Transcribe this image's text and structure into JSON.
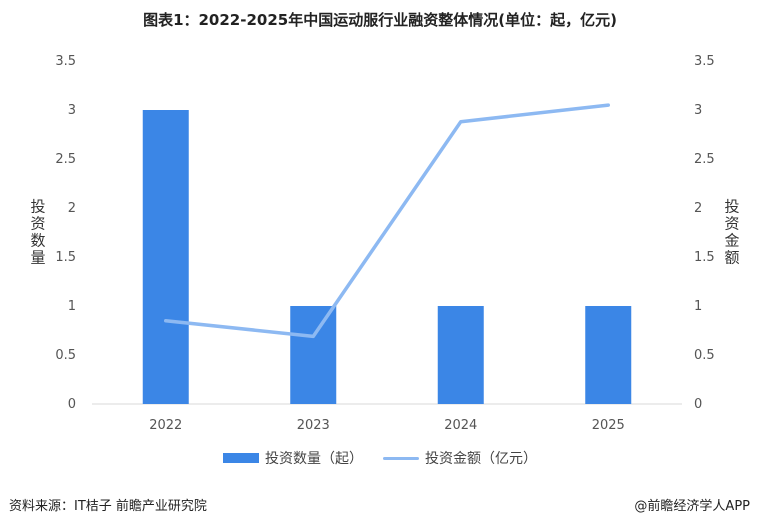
{
  "title": "图表1：2022-2025年中国运动服行业融资整体情况(单位：起，亿元)",
  "source": "资料来源：IT桔子 前瞻产业研究院",
  "copyright": "@前瞻经济学人APP",
  "colors": {
    "bar": "#3b86e6",
    "line": "#8db9f2",
    "grid": "#d9d9d9"
  },
  "chart_data": {
    "type": "bar",
    "categories": [
      "2022",
      "2023",
      "2024",
      "2025"
    ],
    "series": [
      {
        "name": "投资数量（起）",
        "type": "bar",
        "axis": "left",
        "values": [
          3,
          1,
          1,
          1
        ]
      },
      {
        "name": "投资金额（亿元）",
        "type": "line",
        "axis": "right",
        "values": [
          0.85,
          0.69,
          2.88,
          3.05
        ]
      }
    ],
    "ylabel": "投资数量",
    "y2label": "投资金额",
    "ylim": [
      0,
      3.5
    ],
    "y2lim": [
      0,
      3.5
    ],
    "yticks": [
      "0",
      "0.5",
      "1",
      "1.5",
      "2",
      "2.5",
      "3",
      "3.5"
    ],
    "y2ticks": [
      "0",
      "0.5",
      "1",
      "1.5",
      "2",
      "2.5",
      "3",
      "3.5"
    ],
    "grid": false,
    "legend": "bottom"
  }
}
